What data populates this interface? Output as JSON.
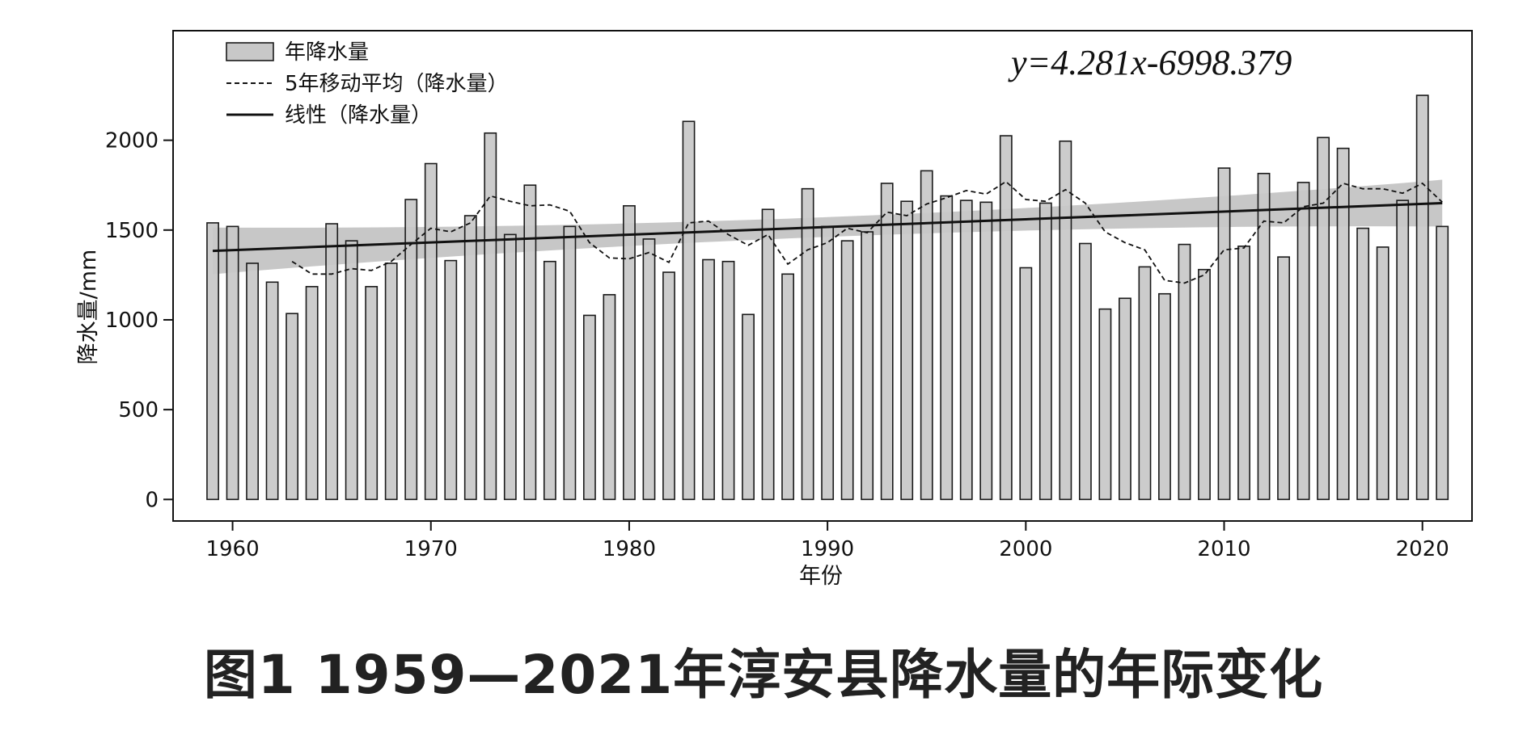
{
  "caption": "图1  1959—2021年淳安县降水量的年际变化",
  "chart_data": {
    "type": "bar",
    "xlabel": "年份",
    "ylabel": "降水量/mm",
    "xlim": [
      1957,
      2022.5
    ],
    "ylim": [
      -120,
      2610
    ],
    "x_ticks": [
      1960,
      1970,
      1980,
      1990,
      2000,
      2010,
      2020
    ],
    "y_ticks": [
      0,
      500,
      1000,
      1500,
      2000
    ],
    "equation": "y=4.281x-6998.379",
    "legend_position": "top-left",
    "legend": [
      {
        "label": "年降水量",
        "kind": "bar"
      },
      {
        "label": "5年移动平均（降水量）",
        "kind": "dashed"
      },
      {
        "label": "线性（降水量）",
        "kind": "solid"
      }
    ],
    "colors": {
      "bar_fill": "#c8c8c8",
      "bar_stroke": "#1a1a1a",
      "line": "#111111",
      "band": "#bdbdbd"
    },
    "x": [
      1959,
      1960,
      1961,
      1962,
      1963,
      1964,
      1965,
      1966,
      1967,
      1968,
      1969,
      1970,
      1971,
      1972,
      1973,
      1974,
      1975,
      1976,
      1977,
      1978,
      1979,
      1980,
      1981,
      1982,
      1983,
      1984,
      1985,
      1986,
      1987,
      1988,
      1989,
      1990,
      1991,
      1992,
      1993,
      1994,
      1995,
      1996,
      1997,
      1998,
      1999,
      2000,
      2001,
      2002,
      2003,
      2004,
      2005,
      2006,
      2007,
      2008,
      2009,
      2010,
      2011,
      2012,
      2013,
      2014,
      2015,
      2016,
      2017,
      2018,
      2019,
      2020,
      2021
    ],
    "values": [
      1540,
      1520,
      1315,
      1210,
      1035,
      1185,
      1535,
      1440,
      1185,
      1315,
      1670,
      1870,
      1330,
      1580,
      2040,
      1475,
      1750,
      1325,
      1520,
      1025,
      1140,
      1635,
      1450,
      1265,
      2105,
      1335,
      1325,
      1030,
      1615,
      1255,
      1730,
      1520,
      1440,
      1490,
      1760,
      1660,
      1830,
      1690,
      1665,
      1655,
      2025,
      1290,
      1650,
      1995,
      1425,
      1060,
      1120,
      1295,
      1145,
      1420,
      1280,
      1845,
      1410,
      1815,
      1350,
      1765,
      2015,
      1955,
      1510,
      1405,
      1665,
      2250,
      1520
    ],
    "moving_average_x": [
      1963,
      1964,
      1965,
      1966,
      1967,
      1968,
      1969,
      1970,
      1971,
      1972,
      1973,
      1974,
      1975,
      1976,
      1977,
      1978,
      1979,
      1980,
      1981,
      1982,
      1983,
      1984,
      1985,
      1986,
      1987,
      1988,
      1989,
      1990,
      1991,
      1992,
      1993,
      1994,
      1995,
      1996,
      1997,
      1998,
      1999,
      2000,
      2001,
      2002,
      2003,
      2004,
      2005,
      2006,
      2007,
      2008,
      2009,
      2010,
      2011,
      2012,
      2013,
      2014,
      2015,
      2016,
      2017,
      2018,
      2019,
      2020,
      2021
    ],
    "moving_average": [
      1325,
      1255,
      1255,
      1285,
      1275,
      1325,
      1420,
      1510,
      1490,
      1540,
      1690,
      1660,
      1635,
      1640,
      1605,
      1430,
      1345,
      1340,
      1375,
      1320,
      1540,
      1550,
      1475,
      1415,
      1475,
      1310,
      1390,
      1430,
      1510,
      1485,
      1600,
      1580,
      1645,
      1680,
      1720,
      1700,
      1770,
      1670,
      1660,
      1725,
      1650,
      1490,
      1430,
      1390,
      1220,
      1205,
      1250,
      1390,
      1400,
      1550,
      1540,
      1630,
      1650,
      1760,
      1730,
      1730,
      1705,
      1760,
      1655
    ],
    "trend_start": [
      1959,
      1384
    ],
    "trend_end": [
      2021,
      1650
    ],
    "confidence_band": {
      "start_half_width": 130,
      "mid_half_width": 55,
      "end_half_width": 130
    }
  }
}
